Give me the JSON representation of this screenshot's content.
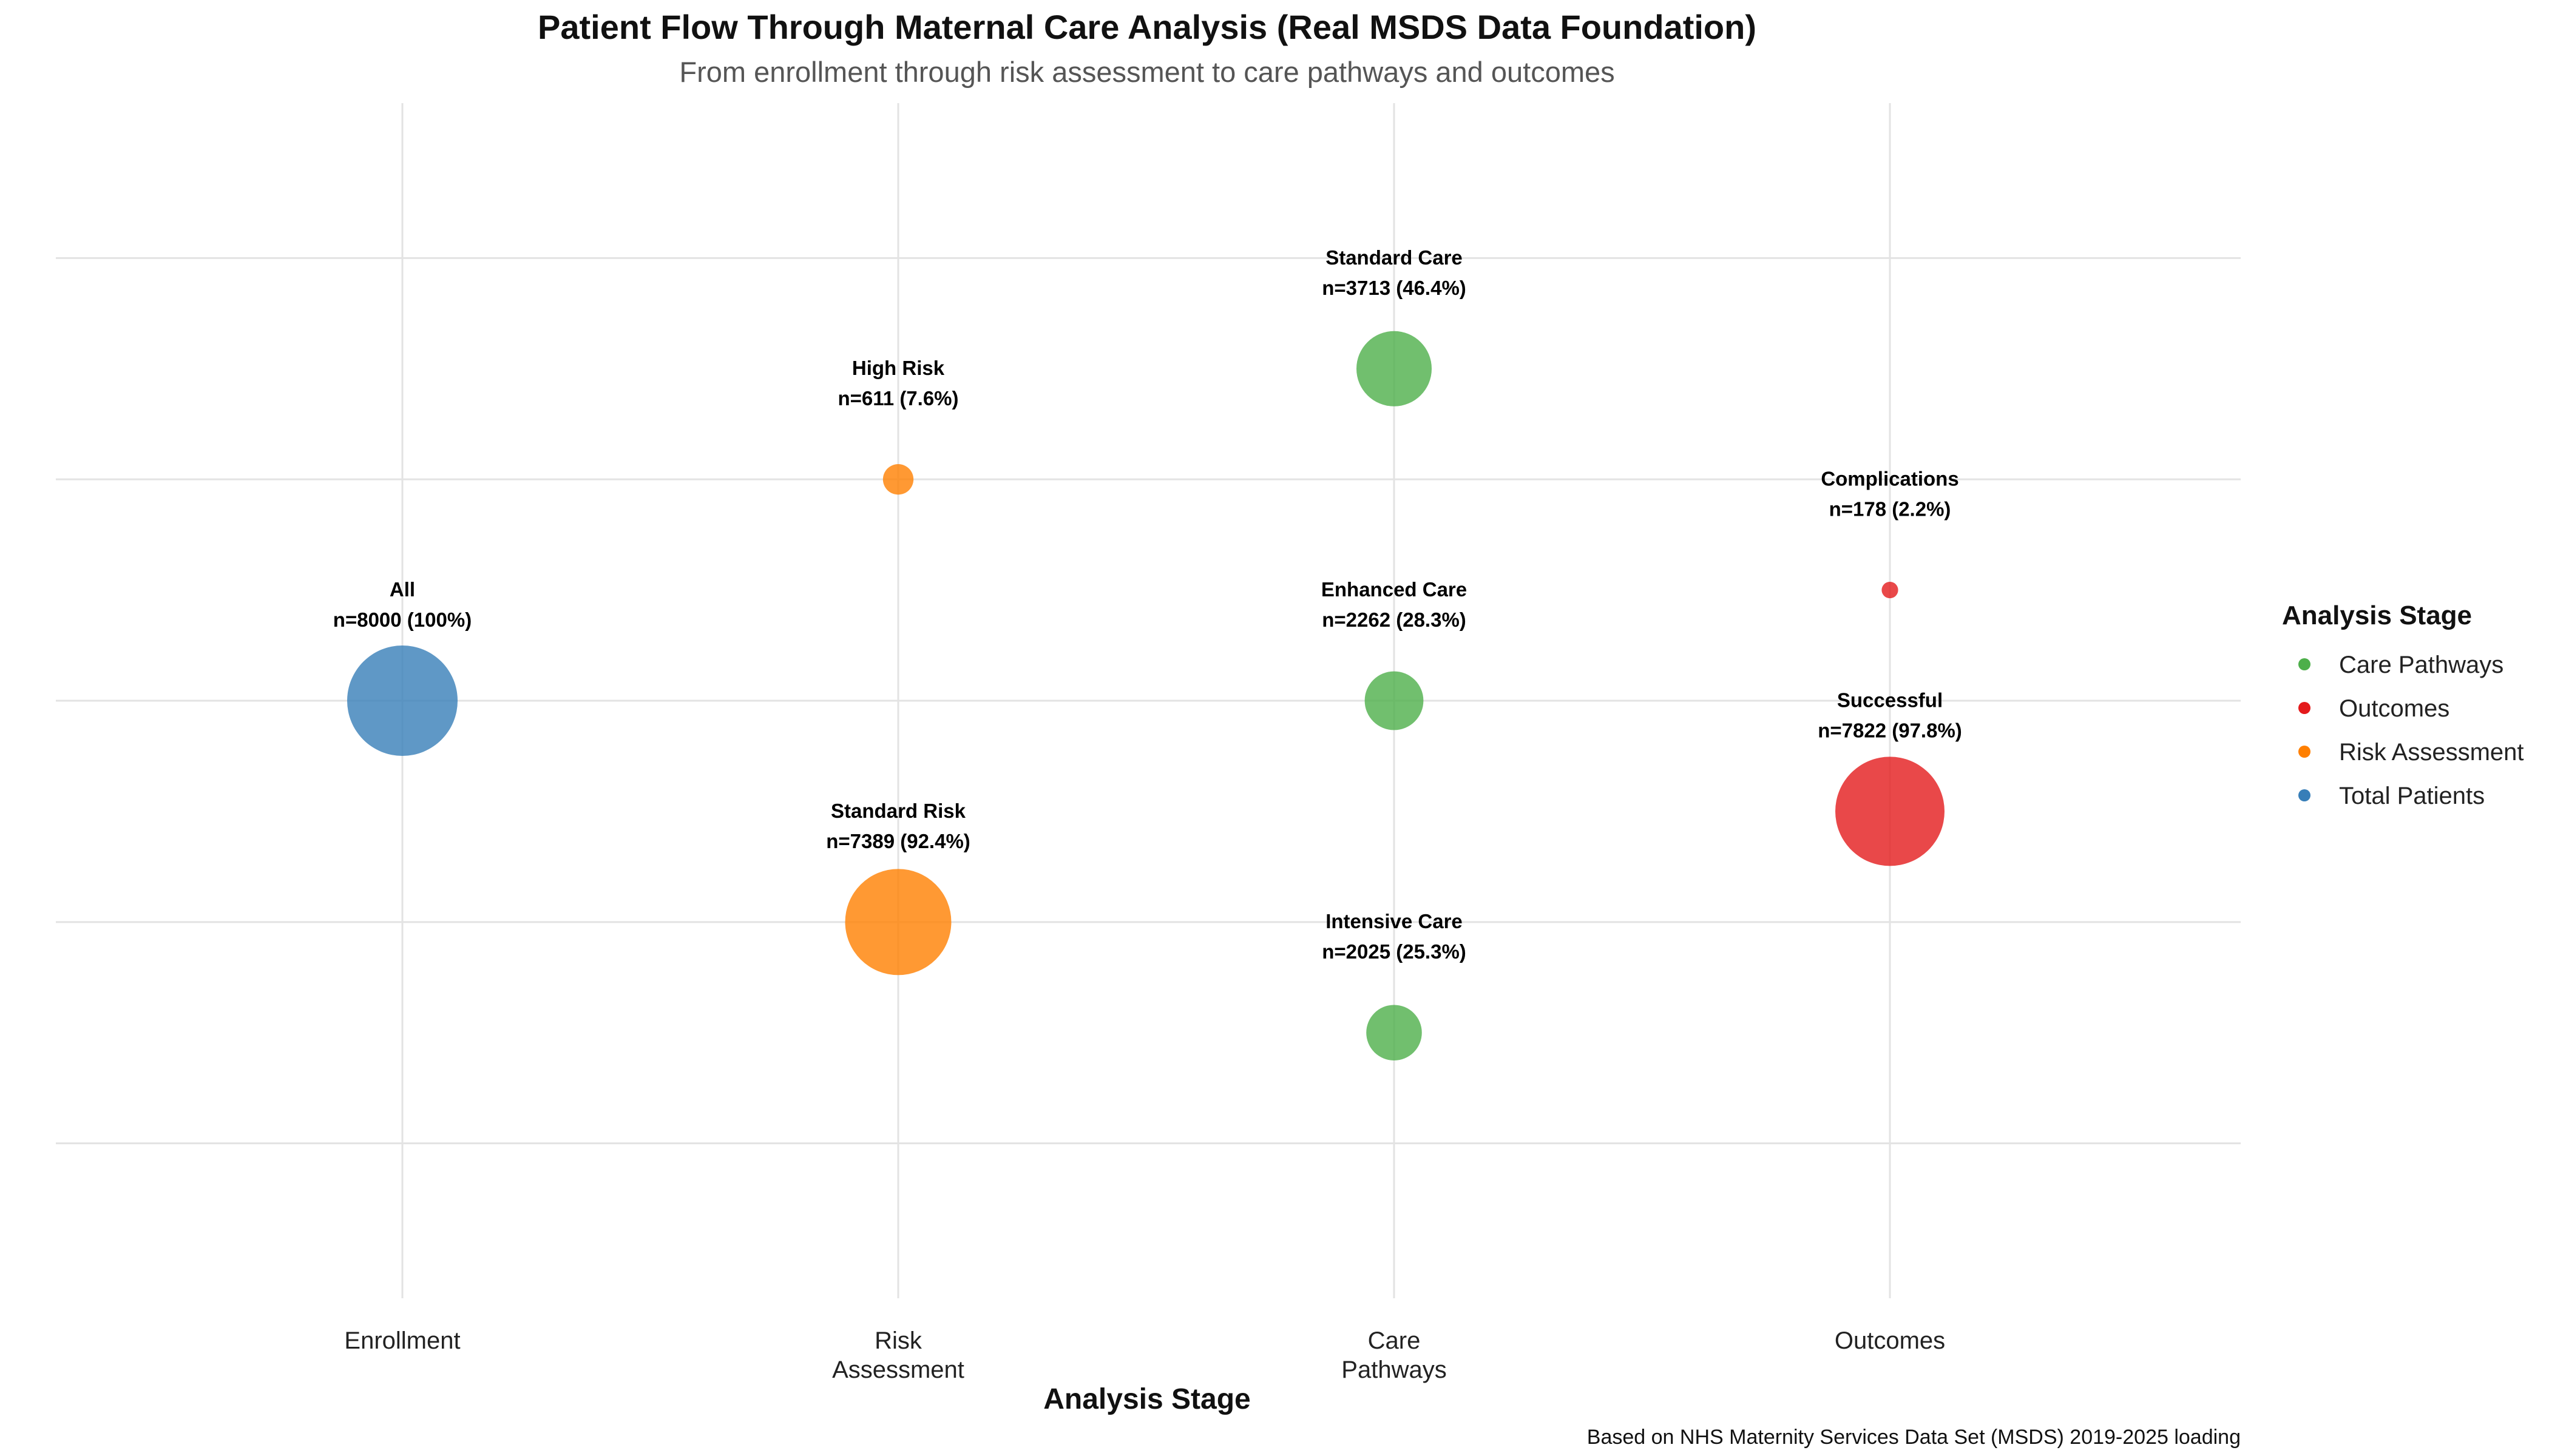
{
  "chart_data": {
    "type": "scatter",
    "title": "Patient Flow Through Maternal Care Analysis (Real MSDS Data Foundation)",
    "subtitle": "From enrollment through risk assessment to care pathways and outcomes",
    "xlabel": "Analysis Stage",
    "ylabel": "",
    "caption": "Based on NHS Maternity Services Data Set (MSDS) 2019-2025 loading",
    "x_categories": [
      {
        "key": "Enrollment",
        "lines": [
          "Enrollment"
        ]
      },
      {
        "key": "Risk Assessment",
        "lines": [
          "Risk",
          "Assessment"
        ]
      },
      {
        "key": "Care Pathways",
        "lines": [
          "Care",
          "Pathways"
        ]
      },
      {
        "key": "Outcomes",
        "lines": [
          "Outcomes"
        ]
      }
    ],
    "ylim": [
      -0.7,
      4.7
    ],
    "y_gridlines": [
      0,
      1,
      2,
      3,
      4
    ],
    "grid": true,
    "legend": {
      "title": "Analysis Stage",
      "placement": "right",
      "entries": [
        {
          "name": "Care Pathways",
          "color": "#4daf4a"
        },
        {
          "name": "Outcomes",
          "color": "#e41a1c"
        },
        {
          "name": "Risk Assessment",
          "color": "#ff7f00"
        },
        {
          "name": "Total Patients",
          "color": "#377eb8"
        }
      ]
    },
    "points": [
      {
        "stage": "Enrollment",
        "group": "Total Patients",
        "y": 2.0,
        "name": "All",
        "n": 8000,
        "label": "n=8000 (100%)"
      },
      {
        "stage": "Risk Assessment",
        "group": "Risk Assessment",
        "y": 3.0,
        "name": "High Risk",
        "n": 611,
        "label": "n=611 (7.6%)"
      },
      {
        "stage": "Risk Assessment",
        "group": "Risk Assessment",
        "y": 1.0,
        "name": "Standard Risk",
        "n": 7389,
        "label": "n=7389 (92.4%)"
      },
      {
        "stage": "Care Pathways",
        "group": "Care Pathways",
        "y": 3.5,
        "name": "Standard Care",
        "n": 3713,
        "label": "n=3713 (46.4%)"
      },
      {
        "stage": "Care Pathways",
        "group": "Care Pathways",
        "y": 2.0,
        "name": "Enhanced Care",
        "n": 2262,
        "label": "n=2262 (28.3%)"
      },
      {
        "stage": "Care Pathways",
        "group": "Care Pathways",
        "y": 0.5,
        "name": "Intensive Care",
        "n": 2025,
        "label": "n=2025 (25.3%)"
      },
      {
        "stage": "Outcomes",
        "group": "Outcomes",
        "y": 2.5,
        "name": "Complications",
        "n": 178,
        "label": "n=178 (2.2%)"
      },
      {
        "stage": "Outcomes",
        "group": "Outcomes",
        "y": 1.5,
        "name": "Successful",
        "n": 7822,
        "label": "n=7822 (97.8%)"
      }
    ]
  }
}
